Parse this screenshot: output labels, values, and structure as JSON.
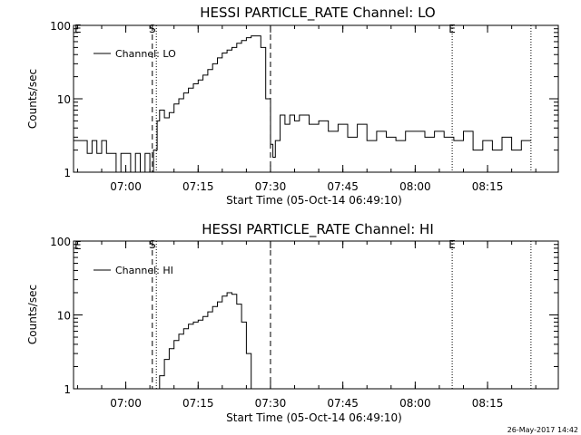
{
  "footer_timestamp": "26-May-2017 14:42",
  "chart_data": [
    {
      "type": "line",
      "title": "HESSI PARTICLE_RATE Channel: LO",
      "xlabel": "Start Time (05-Oct-14 06:49:10)",
      "ylabel": "Counts/sec",
      "yscale": "log",
      "xlim": [
        "06:49:10",
        "08:29:40"
      ],
      "ylim": [
        1,
        100
      ],
      "x_ticks": [
        "07:00",
        "07:15",
        "07:30",
        "07:45",
        "08:00",
        "08:15"
      ],
      "y_ticks": [
        "1",
        "10",
        "100"
      ],
      "grid": false,
      "legend": "top-left",
      "vertical_lines": [
        {
          "time": "07:05:30",
          "style": "dashed",
          "label": "S"
        },
        {
          "time": "07:06:20",
          "style": "dotted",
          "label": ""
        },
        {
          "time": "07:30:00",
          "style": "dashed",
          "label": ""
        },
        {
          "time": "08:07:40",
          "style": "dotted",
          "label": "E"
        },
        {
          "time": "08:24:00",
          "style": "dotted",
          "label": ""
        }
      ],
      "corner_marker": "E",
      "series": [
        {
          "name": "Channel: LO",
          "x": [
            "06:49:10",
            "06:51:00",
            "06:52:00",
            "06:53:00",
            "06:54:00",
            "06:55:00",
            "06:56:00",
            "06:57:00",
            "06:58:00",
            "06:59:00",
            "07:00:00",
            "07:01:00",
            "07:02:00",
            "07:03:00",
            "07:04:00",
            "07:05:00",
            "07:05:45",
            "07:06:30",
            "07:07:00",
            "07:08:00",
            "07:09:00",
            "07:10:00",
            "07:11:00",
            "07:12:00",
            "07:13:00",
            "07:14:00",
            "07:15:00",
            "07:16:00",
            "07:17:00",
            "07:18:00",
            "07:19:00",
            "07:20:00",
            "07:21:00",
            "07:22:00",
            "07:23:00",
            "07:24:00",
            "07:25:00",
            "07:26:00",
            "07:27:00",
            "07:28:00",
            "07:29:00",
            "07:30:00",
            "07:30:30",
            "07:31:00",
            "07:32:00",
            "07:33:00",
            "07:34:00",
            "07:35:00",
            "07:36:00",
            "07:38:00",
            "07:40:00",
            "07:42:00",
            "07:44:00",
            "07:46:00",
            "07:48:00",
            "07:50:00",
            "07:52:00",
            "07:54:00",
            "07:56:00",
            "07:58:00",
            "08:00:00",
            "08:02:00",
            "08:04:00",
            "08:06:00",
            "08:08:00",
            "08:10:00",
            "08:12:00",
            "08:14:00",
            "08:16:00",
            "08:18:00",
            "08:20:00",
            "08:22:00",
            "08:24:00"
          ],
          "y": [
            2.7,
            2.7,
            1.8,
            2.7,
            1.8,
            2.7,
            1.8,
            1.8,
            1.0,
            1.8,
            1.8,
            1.0,
            1.8,
            1.0,
            1.8,
            1.0,
            2.0,
            5.0,
            7.0,
            5.5,
            6.5,
            8.5,
            10,
            12,
            14,
            16,
            18,
            21,
            25,
            30,
            36,
            42,
            46,
            50,
            57,
            62,
            68,
            72,
            72,
            50,
            10,
            2.4,
            1.6,
            2.7,
            6.0,
            4.5,
            6.0,
            5.0,
            6.0,
            4.5,
            5.0,
            3.6,
            4.5,
            3.0,
            4.5,
            2.7,
            3.6,
            3.0,
            2.7,
            3.6,
            3.6,
            3.0,
            3.6,
            3.0,
            2.7,
            3.6,
            2.0,
            2.7,
            2.0,
            3.0,
            2.0,
            2.7,
            2.7
          ]
        }
      ]
    },
    {
      "type": "line",
      "title": "HESSI PARTICLE_RATE Channel: HI",
      "xlabel": "Start Time (05-Oct-14 06:49:10)",
      "ylabel": "Counts/sec",
      "yscale": "log",
      "xlim": [
        "06:49:10",
        "08:29:40"
      ],
      "ylim": [
        1,
        100
      ],
      "x_ticks": [
        "07:00",
        "07:15",
        "07:30",
        "07:45",
        "08:00",
        "08:15"
      ],
      "y_ticks": [
        "1",
        "10",
        "100"
      ],
      "grid": false,
      "legend": "top-left",
      "vertical_lines": [
        {
          "time": "07:05:30",
          "style": "dashed",
          "label": "S"
        },
        {
          "time": "07:06:20",
          "style": "dotted",
          "label": ""
        },
        {
          "time": "07:30:00",
          "style": "dashed",
          "label": ""
        },
        {
          "time": "08:07:40",
          "style": "dotted",
          "label": "E"
        },
        {
          "time": "08:24:00",
          "style": "dotted",
          "label": ""
        }
      ],
      "corner_marker": "E",
      "series": [
        {
          "name": "Channel: HI",
          "x": [
            "07:06:40",
            "07:07:00",
            "07:08:00",
            "07:09:00",
            "07:10:00",
            "07:11:00",
            "07:12:00",
            "07:13:00",
            "07:14:00",
            "07:15:00",
            "07:16:00",
            "07:17:00",
            "07:18:00",
            "07:19:00",
            "07:20:00",
            "07:21:00",
            "07:22:00",
            "07:23:00",
            "07:24:00",
            "07:25:00",
            "07:26:00"
          ],
          "y": [
            1.0,
            1.5,
            2.5,
            3.5,
            4.5,
            5.5,
            6.5,
            7.5,
            8.0,
            8.5,
            9.5,
            11,
            13,
            15,
            18,
            20,
            19,
            14,
            8,
            3,
            1.0
          ]
        }
      ]
    }
  ]
}
